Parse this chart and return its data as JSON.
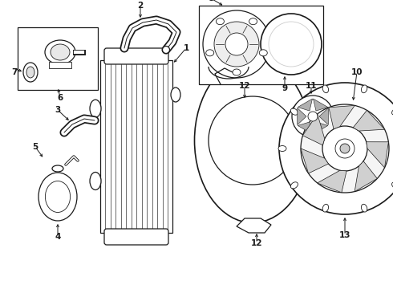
{
  "bg_color": "#ffffff",
  "line_color": "#1a1a1a",
  "fig_width": 4.9,
  "fig_height": 3.6,
  "dpi": 100,
  "font_size": 7.5,
  "font_weight": "bold",
  "font_family": "DejaVu Sans"
}
